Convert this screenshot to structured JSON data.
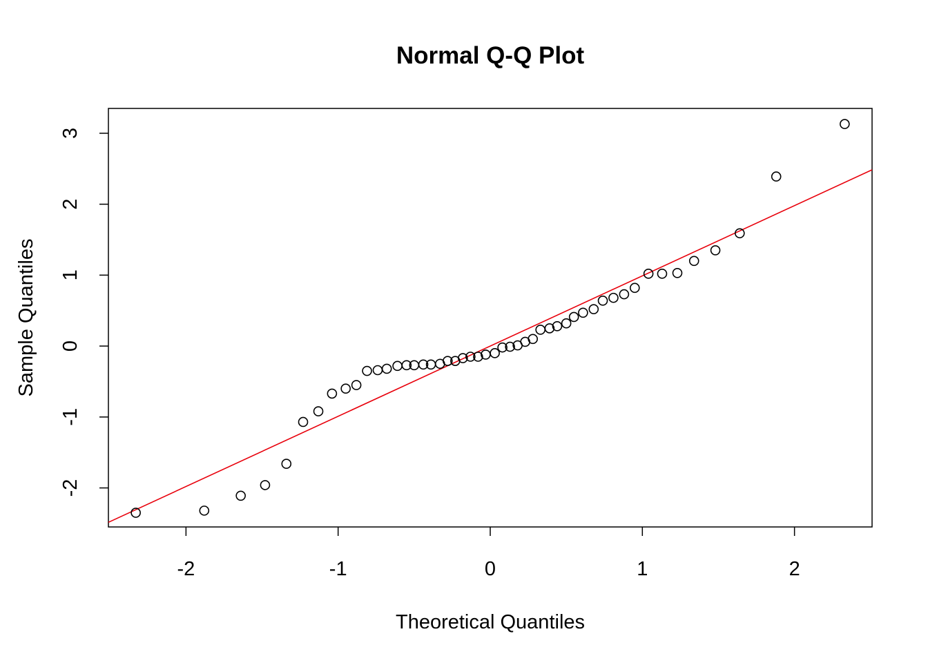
{
  "chart_data": {
    "type": "scatter",
    "title": "Normal Q-Q Plot",
    "xlabel": "Theoretical Quantiles",
    "ylabel": "Sample Quantiles",
    "xlim": [
      -2.51,
      2.51
    ],
    "ylim": [
      -2.55,
      3.35
    ],
    "xticks": [
      -2,
      -1,
      0,
      1,
      2
    ],
    "yticks": [
      -2,
      -1,
      0,
      1,
      2,
      3
    ],
    "grid": false,
    "points_color": "#000000",
    "reference_line": {
      "color": "#e8000b",
      "intercept": 0.0,
      "slope": 0.99
    },
    "points": [
      [
        -2.33,
        -2.35
      ],
      [
        -1.88,
        -2.32
      ],
      [
        -1.64,
        -2.11
      ],
      [
        -1.48,
        -1.96
      ],
      [
        -1.34,
        -1.66
      ],
      [
        -1.23,
        -1.07
      ],
      [
        -1.13,
        -0.92
      ],
      [
        -1.04,
        -0.67
      ],
      [
        -0.95,
        -0.6
      ],
      [
        -0.88,
        -0.55
      ],
      [
        -0.81,
        -0.35
      ],
      [
        -0.74,
        -0.34
      ],
      [
        -0.68,
        -0.32
      ],
      [
        -0.61,
        -0.28
      ],
      [
        -0.55,
        -0.27
      ],
      [
        -0.5,
        -0.27
      ],
      [
        -0.44,
        -0.26
      ],
      [
        -0.39,
        -0.26
      ],
      [
        -0.33,
        -0.25
      ],
      [
        -0.28,
        -0.21
      ],
      [
        -0.23,
        -0.21
      ],
      [
        -0.18,
        -0.17
      ],
      [
        -0.13,
        -0.15
      ],
      [
        -0.08,
        -0.15
      ],
      [
        -0.03,
        -0.12
      ],
      [
        0.03,
        -0.1
      ],
      [
        0.08,
        -0.02
      ],
      [
        0.13,
        -0.01
      ],
      [
        0.18,
        0.01
      ],
      [
        0.23,
        0.06
      ],
      [
        0.28,
        0.1
      ],
      [
        0.33,
        0.23
      ],
      [
        0.39,
        0.25
      ],
      [
        0.44,
        0.28
      ],
      [
        0.5,
        0.32
      ],
      [
        0.55,
        0.41
      ],
      [
        0.61,
        0.47
      ],
      [
        0.68,
        0.52
      ],
      [
        0.74,
        0.64
      ],
      [
        0.81,
        0.68
      ],
      [
        0.88,
        0.73
      ],
      [
        0.95,
        0.82
      ],
      [
        1.04,
        1.02
      ],
      [
        1.13,
        1.02
      ],
      [
        1.23,
        1.03
      ],
      [
        1.34,
        1.2
      ],
      [
        1.48,
        1.35
      ],
      [
        1.64,
        1.59
      ],
      [
        1.88,
        2.39
      ],
      [
        2.33,
        3.13
      ]
    ]
  }
}
